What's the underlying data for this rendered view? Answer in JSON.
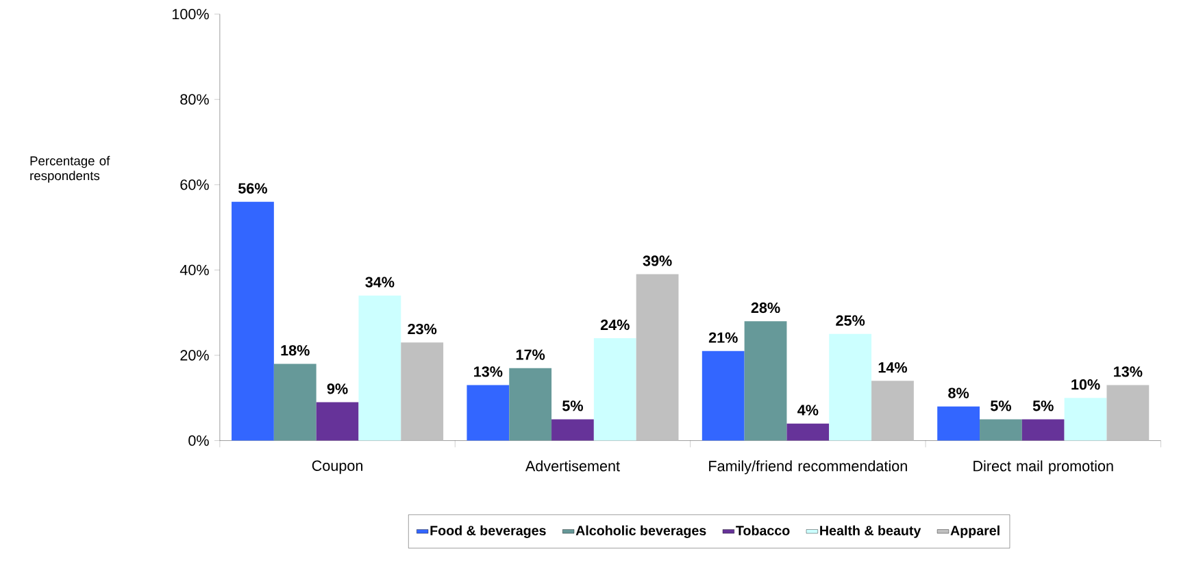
{
  "chart_data": {
    "type": "bar",
    "ylabel": "Percentage of respondents",
    "categories": [
      "Coupon",
      "Advertisement",
      "Family/friend recommendation",
      "Direct mail promotion"
    ],
    "series": [
      {
        "name": "Food & beverages",
        "color": "#3366ff",
        "values": [
          56,
          13,
          21,
          8
        ],
        "value_labels": [
          "56%",
          "13%",
          "21%",
          "8%"
        ]
      },
      {
        "name": "Alcoholic beverages",
        "color": "#669999",
        "values": [
          18,
          17,
          28,
          5
        ],
        "value_labels": [
          "18%",
          "17%",
          "28%",
          "5%"
        ]
      },
      {
        "name": "Tobacco",
        "color": "#663399",
        "values": [
          9,
          5,
          4,
          5
        ],
        "value_labels": [
          "9%",
          "5%",
          "4%",
          "5%"
        ]
      },
      {
        "name": "Health & beauty",
        "color": "#ccffff",
        "values": [
          34,
          24,
          25,
          10
        ],
        "value_labels": [
          "34%",
          "24%",
          "25%",
          "10%"
        ]
      },
      {
        "name": "Apparel",
        "color": "#c0c0c0",
        "values": [
          23,
          39,
          14,
          13
        ],
        "value_labels": [
          "23%",
          "39%",
          "14%",
          "13%"
        ]
      }
    ],
    "ylim": [
      0,
      100
    ],
    "yticks": [
      {
        "value": 0,
        "label": "0%"
      },
      {
        "value": 20,
        "label": "20%"
      },
      {
        "value": 40,
        "label": "40%"
      },
      {
        "value": 60,
        "label": "60%"
      },
      {
        "value": 80,
        "label": "80%"
      },
      {
        "value": 100,
        "label": "100%"
      }
    ],
    "legend": "bottom"
  }
}
